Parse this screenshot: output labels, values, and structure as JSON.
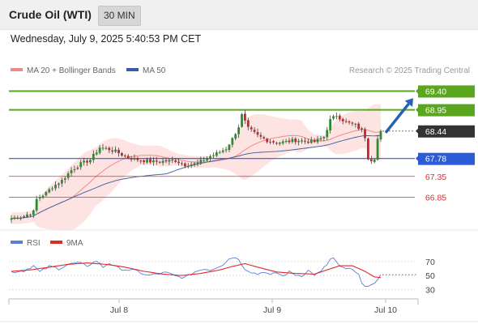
{
  "header": {
    "title": "Crude Oil (WTI)",
    "interval": "30 MIN",
    "timestamp": "Wednesday, July 9, 2025 5:40:53 PM CET"
  },
  "colors": {
    "resistance": "#5aa61e",
    "pivot": "#2b5bd7",
    "support": "#e03030",
    "current": "#333333",
    "bollinger_fill": "#fde0df",
    "ma20": "#f08a86",
    "ma50": "#3a5ba0",
    "candle_up": "#2e8b2e",
    "candle_down": "#c0282b",
    "rsi": "#5b7fd6",
    "rsi_ma": "#e02a2a",
    "arrow": "#2563b0"
  },
  "chart_data": [
    {
      "type": "candlestick",
      "legend": [
        {
          "label": "MA 20 + Bollinger Bands",
          "color": "#f08a86"
        },
        {
          "label": "MA 50",
          "color": "#3a5ba0"
        }
      ],
      "source": "Research © 2025 Trading Central",
      "x_ticks": [
        "Jul 8",
        "Jul 9",
        "Jul 10"
      ],
      "ylim": [
        66.1,
        69.72
      ],
      "levels": [
        {
          "value": 69.4,
          "label": "69.40",
          "kind": "resistance"
        },
        {
          "value": 68.95,
          "label": "68.95",
          "kind": "resistance"
        },
        {
          "value": 68.44,
          "label": "68.44",
          "kind": "current"
        },
        {
          "value": 67.78,
          "label": "67.78",
          "kind": "pivot"
        },
        {
          "value": 67.35,
          "label": "67.35",
          "kind": "support"
        },
        {
          "value": 66.85,
          "label": "66.85",
          "kind": "support"
        }
      ],
      "arrow": {
        "from": [
          68.4
        ],
        "to": [
          69.23
        ],
        "direction": "up"
      },
      "close_keypoints": [
        [
          0,
          66.34
        ],
        [
          4,
          66.4
        ],
        [
          7,
          66.5
        ],
        [
          8,
          66.8
        ],
        [
          11,
          66.95
        ],
        [
          13,
          67.1
        ],
        [
          16,
          67.25
        ],
        [
          19,
          67.5
        ],
        [
          22,
          67.65
        ],
        [
          25,
          67.75
        ],
        [
          28,
          68.05
        ],
        [
          31,
          68.0
        ],
        [
          33,
          67.95
        ],
        [
          37,
          67.8
        ],
        [
          41,
          67.74
        ],
        [
          45,
          67.7
        ],
        [
          49,
          67.72
        ],
        [
          52,
          67.73
        ],
        [
          55,
          67.63
        ],
        [
          59,
          67.66
        ],
        [
          62,
          67.8
        ],
        [
          65,
          67.9
        ],
        [
          68,
          68.02
        ],
        [
          70,
          68.25
        ],
        [
          72,
          68.55
        ],
        [
          73,
          68.82
        ],
        [
          75,
          68.5
        ],
        [
          78,
          68.33
        ],
        [
          81,
          68.22
        ],
        [
          84,
          68.16
        ],
        [
          87,
          68.18
        ],
        [
          90,
          68.22
        ],
        [
          93,
          68.2
        ],
        [
          96,
          68.18
        ],
        [
          99,
          68.3
        ],
        [
          101,
          68.7
        ],
        [
          103,
          68.82
        ],
        [
          106,
          68.65
        ],
        [
          109,
          68.58
        ],
        [
          111,
          68.45
        ],
        [
          112,
          68.3
        ],
        [
          113,
          67.8
        ],
        [
          114,
          67.75
        ],
        [
          115,
          67.8
        ],
        [
          116,
          68.25
        ],
        [
          117,
          68.44
        ]
      ]
    },
    {
      "type": "line",
      "title": "RSI",
      "series": [
        {
          "name": "RSI",
          "color": "#5b7fd6"
        },
        {
          "name": "9MA",
          "color": "#e02a2a"
        }
      ],
      "y_ticks": [
        70,
        50,
        30
      ],
      "ylim": [
        20,
        78
      ],
      "rsi_keypoints": [
        [
          0,
          55
        ],
        [
          4,
          57
        ],
        [
          7,
          64
        ],
        [
          9,
          55
        ],
        [
          12,
          63
        ],
        [
          15,
          60
        ],
        [
          18,
          66
        ],
        [
          21,
          68
        ],
        [
          24,
          64
        ],
        [
          27,
          71
        ],
        [
          29,
          62
        ],
        [
          31,
          68
        ],
        [
          34,
          60
        ],
        [
          37,
          58
        ],
        [
          40,
          56
        ],
        [
          43,
          50
        ],
        [
          46,
          52
        ],
        [
          49,
          54
        ],
        [
          52,
          49
        ],
        [
          55,
          47
        ],
        [
          58,
          55
        ],
        [
          61,
          60
        ],
        [
          63,
          58
        ],
        [
          65,
          62
        ],
        [
          67,
          66
        ],
        [
          69,
          74
        ],
        [
          71,
          77
        ],
        [
          72,
          72
        ],
        [
          74,
          60
        ],
        [
          76,
          55
        ],
        [
          78,
          52
        ],
        [
          80,
          56
        ],
        [
          82,
          50
        ],
        [
          84,
          54
        ],
        [
          86,
          49
        ],
        [
          88,
          55
        ],
        [
          90,
          51
        ],
        [
          92,
          50
        ],
        [
          94,
          57
        ],
        [
          96,
          51
        ],
        [
          98,
          55
        ],
        [
          100,
          66
        ],
        [
          101,
          73
        ],
        [
          102,
          75
        ],
        [
          104,
          62
        ],
        [
          106,
          60
        ],
        [
          108,
          58
        ],
        [
          110,
          50
        ],
        [
          111,
          41
        ],
        [
          112,
          36
        ],
        [
          113,
          34
        ],
        [
          114,
          35
        ],
        [
          115,
          37
        ],
        [
          116,
          45
        ],
        [
          117,
          53
        ]
      ],
      "ma_keypoints": [
        [
          0,
          56
        ],
        [
          6,
          58
        ],
        [
          12,
          62
        ],
        [
          18,
          66
        ],
        [
          24,
          68
        ],
        [
          30,
          66
        ],
        [
          36,
          62
        ],
        [
          42,
          56
        ],
        [
          48,
          52
        ],
        [
          54,
          50
        ],
        [
          60,
          53
        ],
        [
          66,
          58
        ],
        [
          70,
          63
        ],
        [
          74,
          67
        ],
        [
          78,
          62
        ],
        [
          84,
          55
        ],
        [
          90,
          53
        ],
        [
          96,
          52
        ],
        [
          100,
          58
        ],
        [
          104,
          64
        ],
        [
          108,
          64
        ],
        [
          112,
          56
        ],
        [
          115,
          48
        ],
        [
          117,
          47
        ]
      ]
    }
  ]
}
